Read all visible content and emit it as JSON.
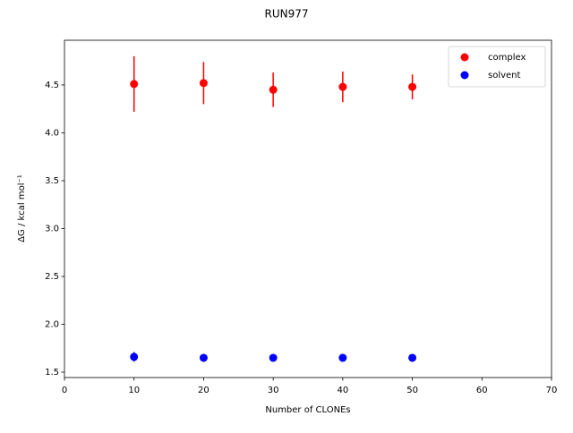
{
  "chart_data": {
    "type": "scatter",
    "title": "RUN977",
    "x_label": "Number of CLONEs",
    "y_label": "ΔG / kcal mol⁻¹",
    "x": [
      10,
      20,
      30,
      40,
      50
    ],
    "series": [
      {
        "name": "complex",
        "color": "#ff0000",
        "values": [
          4.51,
          4.52,
          4.45,
          4.48,
          4.48
        ],
        "errors": [
          0.29,
          0.22,
          0.18,
          0.16,
          0.13
        ]
      },
      {
        "name": "solvent",
        "color": "#0000ff",
        "values": [
          1.66,
          1.65,
          1.65,
          1.65,
          1.65
        ],
        "errors": [
          0.05,
          0.01,
          0.01,
          0.01,
          0.01
        ]
      }
    ],
    "xlim": [
      0,
      70
    ],
    "xticks": [
      0,
      10,
      20,
      30,
      40,
      50,
      60,
      70
    ],
    "ylim": [
      1.444,
      4.967
    ],
    "yticks": [
      1.5,
      {
        "value": 2,
        "label": "2.0"
      },
      2.5,
      {
        "value": 3,
        "label": "3.0"
      },
      3.5,
      {
        "value": 4,
        "label": "4.0"
      },
      4.5
    ],
    "grid": false,
    "legend": "upper right"
  }
}
